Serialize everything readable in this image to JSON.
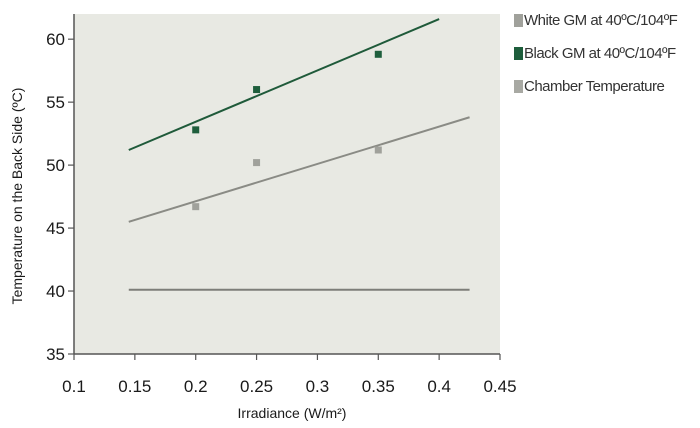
{
  "chart_data": {
    "type": "scatter",
    "title": "",
    "xlabel": "Irradiance (W/m²)",
    "ylabel": "Temperature on the Back Side (ºC)",
    "xlim": [
      0.1,
      0.45
    ],
    "ylim": [
      35,
      62
    ],
    "xticks": [
      "0.1",
      "0.15",
      "0.2",
      "0.25",
      "0.3",
      "0.35",
      "0.4",
      "0.45"
    ],
    "yticks": [
      "35",
      "40",
      "45",
      "50",
      "55",
      "60"
    ],
    "grid": false,
    "legend_position": "top-right, outside plot",
    "plot_background": "#e8e9e3",
    "series": [
      {
        "name": "White GM at 40ºC/104ºF",
        "marker_color": "#a0a19b",
        "line_color": "#8a8b85",
        "points": [
          [
            0.2,
            46.7
          ],
          [
            0.25,
            50.2
          ],
          [
            0.35,
            51.2
          ]
        ],
        "trend": [
          [
            0.145,
            45.5
          ],
          [
            0.425,
            53.8
          ]
        ]
      },
      {
        "name": "Black GM at 40ºC/104ºF",
        "marker_color": "#1e5e3c",
        "line_color": "#1f5a3a",
        "points": [
          [
            0.2,
            52.8
          ],
          [
            0.25,
            56.0
          ],
          [
            0.35,
            58.8
          ]
        ],
        "trend": [
          [
            0.145,
            51.2
          ],
          [
            0.4,
            61.6
          ]
        ]
      },
      {
        "name": "Chamber Temperature",
        "marker_color": "#a8a9a3",
        "line_color": "#7d7e79",
        "points": [],
        "trend": [
          [
            0.145,
            40.1
          ],
          [
            0.425,
            40.1
          ]
        ]
      }
    ]
  }
}
